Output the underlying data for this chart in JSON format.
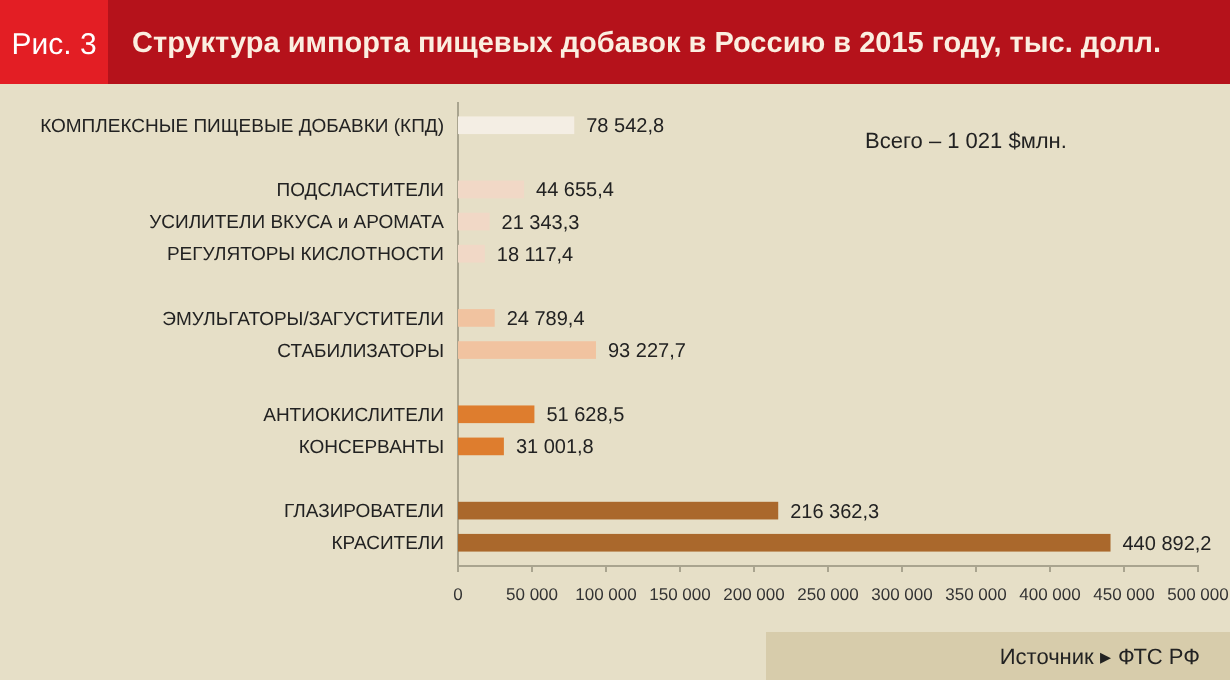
{
  "chart_data": {
    "type": "bar",
    "orientation": "horizontal",
    "title": "Структура импорта пищевых добавок в Россию в 2015 году, тыс. долл.",
    "categories": [
      "КОМПЛЕКСНЫЕ ПИЩЕВЫЕ ДОБАВКИ (КПД)",
      null,
      "ПОДСЛАСТИТЕЛИ",
      "УСИЛИТЕЛИ ВКУСА и АРОМАТА",
      "РЕГУЛЯТОРЫ КИСЛОТНОСТИ",
      null,
      "ЭМУЛЬГАТОРЫ/ЗАГУСТИТЕЛИ",
      "СТАБИЛИЗАТОРЫ",
      null,
      "АНТИОКИСЛИТЕЛИ",
      "КОНСЕРВАНТЫ",
      null,
      "ГЛАЗИРОВАТЕЛИ",
      "КРАСИТЕЛИ"
    ],
    "values": [
      78542.8,
      null,
      44655.4,
      21343.3,
      18117.4,
      null,
      24789.4,
      93227.7,
      null,
      51628.5,
      31001.8,
      null,
      216362.3,
      440892.2
    ],
    "value_labels": [
      "78 542,8",
      null,
      "44 655,4",
      "21 343,3",
      "18 117,4",
      null,
      "24 789,4",
      "93 227,7",
      null,
      "51 628,5",
      "31 001,8",
      null,
      "216 362,3",
      "440 892,2"
    ],
    "colors": [
      "#f4eee4",
      null,
      "#f1d8c6",
      "#f1d8c6",
      "#f1d8c6",
      null,
      "#f1c3a0",
      "#f1c3a0",
      null,
      "#de7d2e",
      "#de7d2e",
      null,
      "#aa682c",
      "#aa682c"
    ],
    "xlim": [
      0,
      500000
    ],
    "xticks": [
      0,
      {
        "value": 50000,
        "label": "50 000"
      },
      {
        "value": 100000,
        "label": "100 000"
      },
      {
        "value": 150000,
        "label": "150 000"
      },
      {
        "value": 200000,
        "label": "200 000"
      },
      {
        "value": 250000,
        "label": "250 000"
      },
      {
        "value": 300000,
        "label": "300 000"
      },
      {
        "value": 350000,
        "label": "350 000"
      },
      {
        "value": 400000,
        "label": "400 000"
      },
      {
        "value": 450000,
        "label": "450 000"
      },
      {
        "value": 500000,
        "label": "500 000"
      }
    ],
    "grid": false,
    "annotations": [
      "Рис. 3",
      "Всего – 1 021 $млн.",
      "Источник ▸ ФТС РФ"
    ]
  }
}
